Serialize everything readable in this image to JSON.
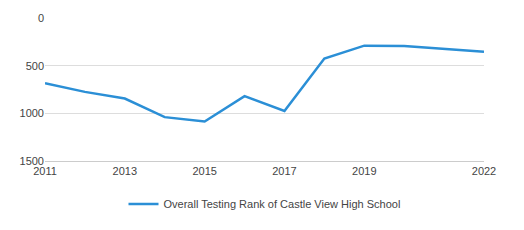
{
  "chart_data": {
    "type": "line",
    "x": [
      2011,
      2012,
      2013,
      2014,
      2015,
      2016,
      2017,
      2018,
      2019,
      2020,
      2022
    ],
    "series": [
      {
        "name": "Overall Testing Rank of Castle View High School",
        "color": "#2b8fd6",
        "values": [
          685,
          775,
          845,
          1040,
          1085,
          820,
          975,
          425,
          290,
          295,
          355
        ]
      }
    ],
    "xlim": [
      2011,
      2022
    ],
    "xticks": [
      2011,
      2013,
      2015,
      2017,
      2019,
      2022
    ],
    "ylim": [
      1500,
      0
    ],
    "yticks": [
      0,
      500,
      1000,
      1500
    ],
    "grid": true
  }
}
